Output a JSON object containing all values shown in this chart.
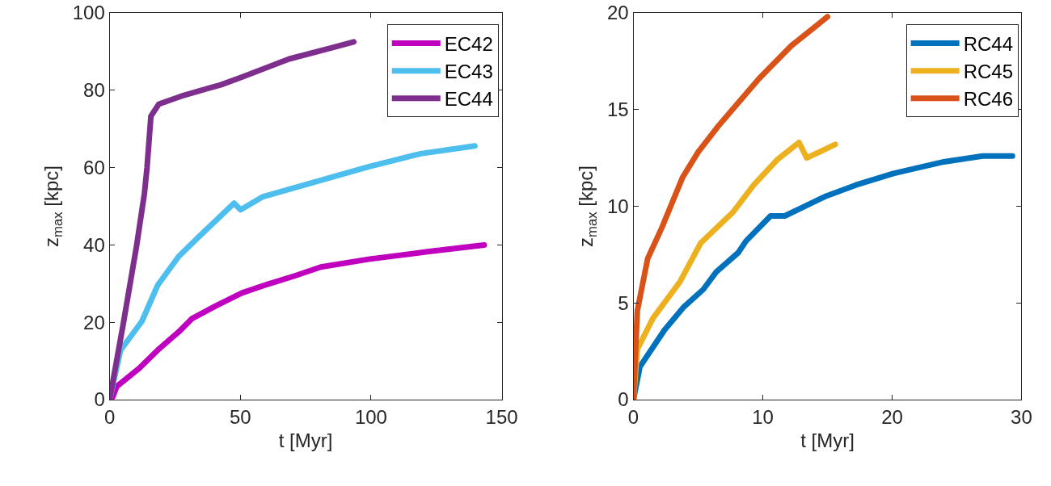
{
  "chart_data": [
    {
      "type": "line",
      "xlabel": "t [Myr]",
      "ylabel": "z$_{max}$ [kpc]",
      "xlim": [
        0,
        150
      ],
      "ylim": [
        0,
        100
      ],
      "xticks": [
        0,
        50,
        100,
        150
      ],
      "yticks": [
        0,
        20,
        40,
        60,
        80,
        100
      ],
      "grid": false,
      "legend": "top right",
      "line_style": "solid",
      "marker": "none",
      "series": [
        {
          "name": "EC42",
          "color": "#bf00bf",
          "x": [
            0,
            1.2,
            2.7,
            11.3,
            18.4,
            26.4,
            31.4,
            40.5,
            50.6,
            60.7,
            70.8,
            80.8,
            99,
            122.2,
            143.3
          ],
          "values": [
            0,
            0.7,
            3.4,
            8.1,
            12.8,
            17.5,
            20.9,
            24.2,
            27.6,
            29.9,
            32,
            34.3,
            36.3,
            38.3,
            40
          ]
        },
        {
          "name": "EC43",
          "color": "#4dbeee",
          "x": [
            0,
            4.2,
            12.3,
            18.4,
            26.4,
            33.5,
            47.6,
            50.1,
            58.7,
            99,
            119,
            139.7
          ],
          "values": [
            0,
            12.8,
            20.2,
            29.6,
            37,
            41.7,
            50.8,
            49.1,
            52.5,
            60.2,
            63.6,
            65.6
          ]
        },
        {
          "name": "EC44",
          "color": "#7e2f8e",
          "x": [
            0,
            5.2,
            10.3,
            13.3,
            14.3,
            15.8,
            18.8,
            28.4,
            42.5,
            50.6,
            68.7,
            83.9,
            93.4
          ],
          "values": [
            0,
            19.5,
            39.7,
            53.2,
            59.9,
            73.3,
            76.4,
            78.7,
            81.4,
            83.4,
            88.1,
            90.8,
            92.5
          ]
        }
      ]
    },
    {
      "type": "line",
      "xlabel": "t [Myr]",
      "ylabel": "z$_{max}$ [kpc]",
      "xlim": [
        0,
        30
      ],
      "ylim": [
        0,
        20
      ],
      "xticks": [
        0,
        10,
        20,
        30
      ],
      "yticks": [
        0,
        5,
        10,
        15,
        20
      ],
      "grid": false,
      "legend": "top right",
      "line_style": "solid",
      "marker": "none",
      "series": [
        {
          "name": "RC44",
          "color": "#0072bd",
          "x": [
            0,
            0.5,
            2.4,
            3.9,
            5.4,
            6.4,
            8.1,
            8.7,
            10.6,
            11.7,
            14.8,
            17.2,
            20.1,
            24,
            27,
            29.3
          ],
          "values": [
            0,
            1.7,
            3.6,
            4.8,
            5.7,
            6.6,
            7.6,
            8.2,
            9.5,
            9.5,
            10.5,
            11.1,
            11.7,
            12.3,
            12.6,
            12.6
          ]
        },
        {
          "name": "RC45",
          "color": "#edb120",
          "x": [
            0,
            0.3,
            1.5,
            3.6,
            5.2,
            7.7,
            9.3,
            11.1,
            12.8,
            13.4,
            15.6
          ],
          "values": [
            0,
            2.6,
            4.2,
            6.1,
            8.1,
            9.7,
            11.1,
            12.4,
            13.3,
            12.5,
            13.2
          ]
        },
        {
          "name": "RC46",
          "color": "#d95319",
          "x": [
            0,
            0.3,
            1.1,
            2.2,
            3.8,
            5,
            6.5,
            9.7,
            12.2,
            15
          ],
          "values": [
            0,
            4.6,
            7.3,
            8.9,
            11.5,
            12.8,
            14.1,
            16.6,
            18.3,
            19.8
          ]
        }
      ]
    }
  ]
}
